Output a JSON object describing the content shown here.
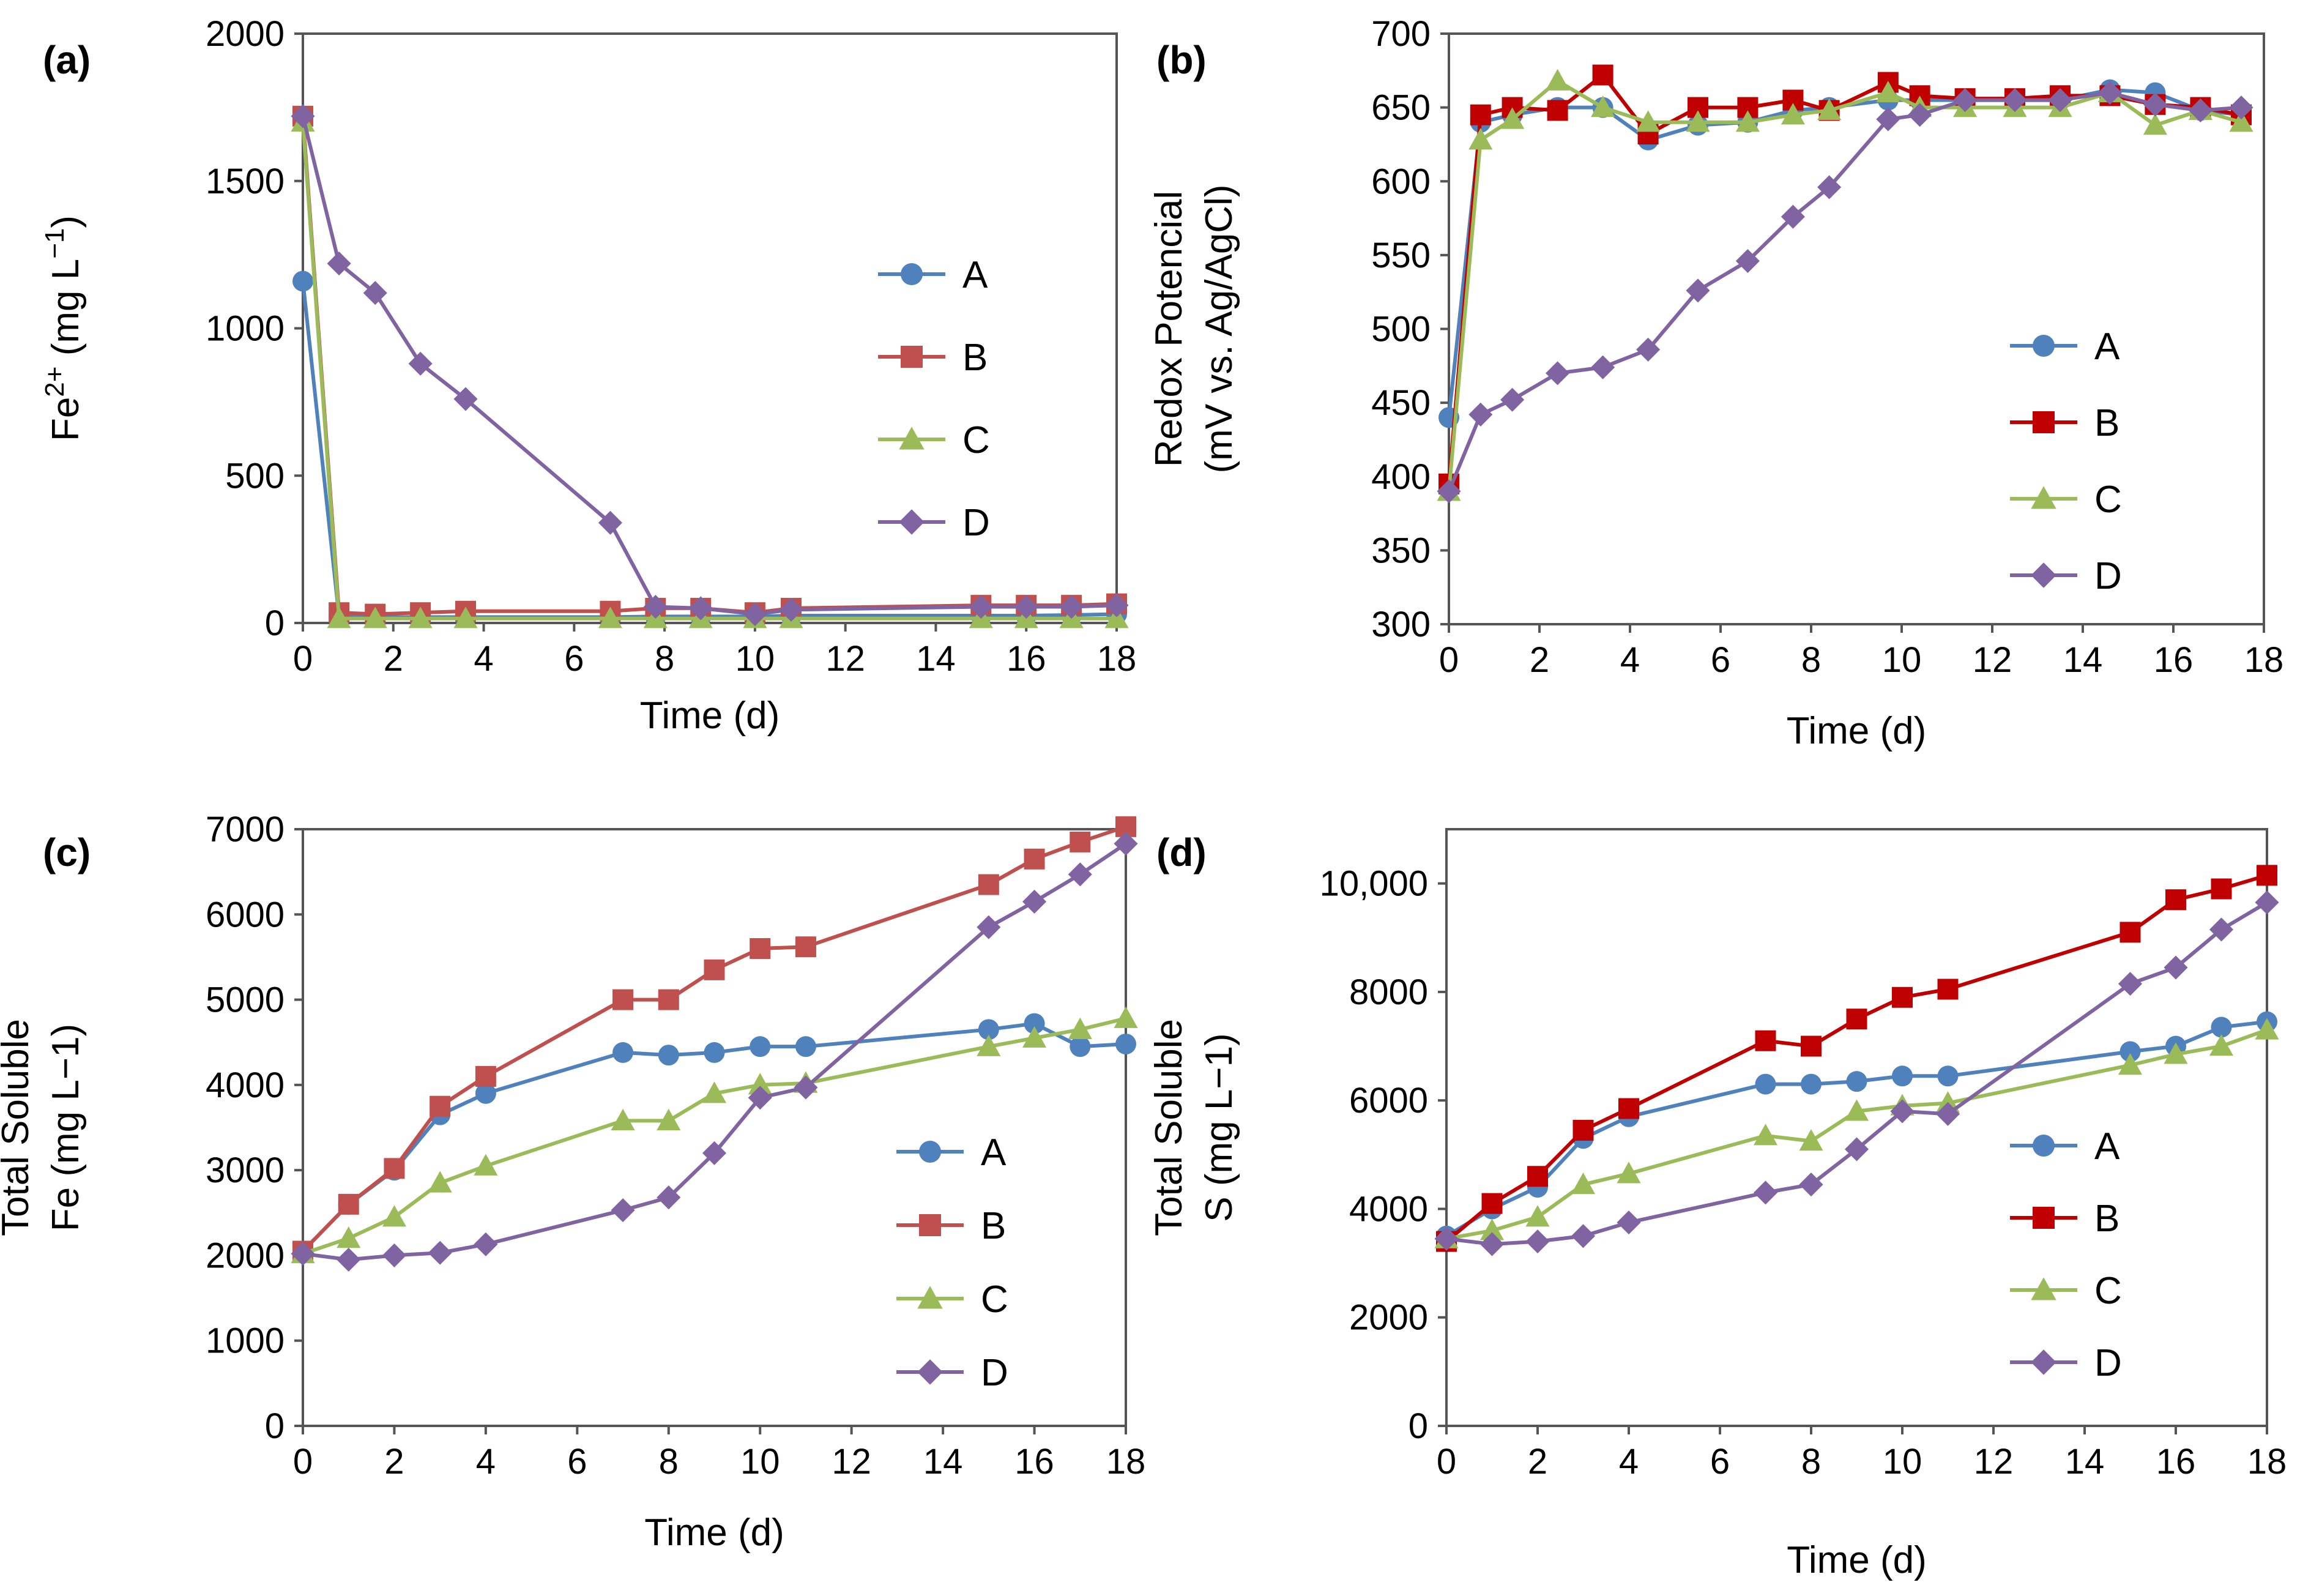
{
  "chart_data": [
    {
      "panel": "(a)",
      "type": "line",
      "title": "",
      "xlabel": "Time (d)",
      "ylabel": "Fe2+ (mg L−1)",
      "ylabel_parts": {
        "base": "Fe",
        "sup": "2+",
        "rest": " (mg  L",
        "unit_sup": "−1",
        "close": ")"
      },
      "xlim": [
        0,
        18
      ],
      "ylim": [
        0,
        2000
      ],
      "xticks": [
        "0",
        "2",
        "4",
        "6",
        "8",
        "10",
        "12",
        "14",
        "16",
        "18"
      ],
      "yticks": [
        "0",
        "500",
        "1000",
        "1500",
        "2000"
      ],
      "legend_position": "right",
      "series": [
        {
          "name": "A",
          "color": "#4f81bd",
          "marker": "circle",
          "x": [
            0,
            0.8,
            1.6,
            2.6,
            3.6,
            6.8,
            7.8,
            8.8,
            10,
            10.8,
            15,
            16,
            17,
            18
          ],
          "y": [
            1160,
            22,
            20,
            20,
            20,
            20,
            22,
            22,
            22,
            25,
            25,
            25,
            27,
            30
          ]
        },
        {
          "name": "B",
          "color": "#c0504d",
          "marker": "square",
          "x": [
            0,
            0.8,
            1.6,
            2.6,
            3.6,
            6.8,
            7.8,
            8.8,
            10,
            10.8,
            15,
            16,
            17,
            18
          ],
          "y": [
            1720,
            35,
            30,
            35,
            40,
            40,
            50,
            50,
            35,
            50,
            60,
            60,
            60,
            65
          ]
        },
        {
          "name": "C",
          "color": "#9bbb59",
          "marker": "triangle",
          "x": [
            0,
            0.8,
            1.6,
            2.6,
            3.6,
            6.8,
            7.8,
            8.8,
            10,
            10.8,
            15,
            16,
            17,
            18
          ],
          "y": [
            1700,
            15,
            15,
            15,
            15,
            15,
            15,
            15,
            15,
            15,
            15,
            15,
            15,
            15
          ]
        },
        {
          "name": "D",
          "color": "#8064a2",
          "marker": "diamond",
          "x": [
            0,
            0.8,
            1.6,
            2.6,
            3.6,
            6.8,
            7.8,
            8.8,
            10,
            10.8,
            15,
            16,
            17,
            18
          ],
          "y": [
            1720,
            1220,
            1120,
            880,
            760,
            340,
            55,
            50,
            30,
            45,
            55,
            55,
            55,
            60
          ]
        }
      ]
    },
    {
      "panel": "(b)",
      "type": "line",
      "title": "",
      "xlabel": "Time (d)",
      "ylabel": "Redox Potencial (mV vs. Ag/AgCl)",
      "ylabel_lines": [
        "Redox Potencial",
        "(mV vs. Ag/AgCl)"
      ],
      "xlim": [
        0,
        18
      ],
      "ylim": [
        300,
        700
      ],
      "xticks": [
        "0",
        "2",
        "4",
        "6",
        "8",
        "10",
        "12",
        "14",
        "16",
        "18"
      ],
      "yticks": [
        "300",
        "350",
        "400",
        "450",
        "500",
        "550",
        "600",
        "650",
        "700"
      ],
      "legend_position": "bottom-right",
      "series": [
        {
          "name": "A",
          "color": "#4f81bd",
          "marker": "circle",
          "x": [
            0,
            0.7,
            1.4,
            2.4,
            3.4,
            4.4,
            5.5,
            6.6,
            7.6,
            8.4,
            9.7,
            10.4,
            11.4,
            12.5,
            13.5,
            14.6,
            15.6,
            16.6,
            17.5
          ],
          "y": [
            440,
            640,
            645,
            650,
            650,
            628,
            638,
            640,
            648,
            650,
            655,
            655,
            655,
            655,
            655,
            662,
            660,
            648,
            645
          ]
        },
        {
          "name": "B",
          "color": "#c00000",
          "marker": "square",
          "x": [
            0,
            0.7,
            1.4,
            2.4,
            3.4,
            4.4,
            5.5,
            6.6,
            7.6,
            8.4,
            9.7,
            10.4,
            11.4,
            12.5,
            13.5,
            14.6,
            15.6,
            16.6,
            17.5
          ],
          "y": [
            395,
            645,
            650,
            648,
            672,
            632,
            650,
            650,
            655,
            648,
            667,
            658,
            656,
            656,
            658,
            658,
            652,
            650,
            645
          ]
        },
        {
          "name": "C",
          "color": "#9bbb59",
          "marker": "triangle",
          "x": [
            0,
            0.7,
            1.4,
            2.4,
            3.4,
            4.4,
            5.5,
            6.6,
            7.6,
            8.4,
            9.7,
            10.4,
            11.4,
            12.5,
            13.5,
            14.6,
            15.6,
            16.6,
            17.5
          ],
          "y": [
            390,
            628,
            642,
            668,
            650,
            640,
            640,
            640,
            645,
            648,
            660,
            650,
            650,
            650,
            650,
            660,
            638,
            648,
            640
          ]
        },
        {
          "name": "D",
          "color": "#8064a2",
          "marker": "diamond",
          "x": [
            0,
            0.7,
            1.4,
            2.4,
            3.4,
            4.4,
            5.5,
            6.6,
            7.6,
            8.4,
            9.7,
            10.4,
            11.4,
            12.5,
            13.5,
            14.6,
            15.6,
            16.6,
            17.5
          ],
          "y": [
            390,
            442,
            452,
            470,
            474,
            486,
            526,
            546,
            576,
            596,
            642,
            645,
            655,
            655,
            655,
            660,
            652,
            648,
            650
          ]
        }
      ]
    },
    {
      "panel": "(c)",
      "type": "line",
      "title": "",
      "xlabel": "Time (d)",
      "ylabel": "Total Soluble Fe (mg L−1)",
      "ylabel_lines": [
        "Total Soluble",
        "Fe (mg L−1)"
      ],
      "xlim": [
        0,
        18
      ],
      "ylim": [
        0,
        7000
      ],
      "xticks": [
        "0",
        "2",
        "4",
        "6",
        "8",
        "10",
        "12",
        "14",
        "16",
        "18"
      ],
      "yticks": [
        "0",
        "1000",
        "2000",
        "3000",
        "4000",
        "5000",
        "6000",
        "7000"
      ],
      "legend_position": "bottom-right",
      "series": [
        {
          "name": "A",
          "color": "#4f81bd",
          "marker": "circle",
          "x": [
            0,
            1,
            2,
            3,
            4,
            7,
            8,
            9,
            10,
            11,
            15,
            16,
            17,
            18
          ],
          "y": [
            2050,
            2600,
            3000,
            3650,
            3900,
            4380,
            4350,
            4380,
            4450,
            4450,
            4650,
            4720,
            4450,
            4480
          ]
        },
        {
          "name": "B",
          "color": "#c0504d",
          "marker": "square",
          "x": [
            0,
            1,
            2,
            3,
            4,
            7,
            8,
            9,
            10,
            11,
            15,
            16,
            17,
            18
          ],
          "y": [
            2050,
            2600,
            3020,
            3750,
            4100,
            5000,
            5000,
            5350,
            5600,
            5620,
            6350,
            6650,
            6850,
            7030
          ]
        },
        {
          "name": "C",
          "color": "#9bbb59",
          "marker": "triangle",
          "x": [
            0,
            1,
            2,
            3,
            4,
            7,
            8,
            9,
            10,
            11,
            15,
            16,
            17,
            18
          ],
          "y": [
            2020,
            2200,
            2450,
            2850,
            3050,
            3580,
            3580,
            3900,
            4000,
            4020,
            4450,
            4550,
            4650,
            4780
          ]
        },
        {
          "name": "D",
          "color": "#8064a2",
          "marker": "diamond",
          "x": [
            0,
            1,
            2,
            3,
            4,
            7,
            8,
            9,
            10,
            11,
            15,
            16,
            17,
            18
          ],
          "y": [
            2020,
            1950,
            2000,
            2030,
            2130,
            2530,
            2680,
            3200,
            3850,
            3970,
            5850,
            6150,
            6470,
            6830
          ]
        }
      ]
    },
    {
      "panel": "(d)",
      "type": "line",
      "title": "",
      "xlabel": "Time (d)",
      "ylabel": "Total Soluble S (mg L−1)",
      "ylabel_lines": [
        "Total Soluble",
        "S (mg L−1)"
      ],
      "xlim": [
        0,
        18
      ],
      "ylim": [
        0,
        11000
      ],
      "xticks": [
        "0",
        "2",
        "4",
        "6",
        "8",
        "10",
        "12",
        "14",
        "16",
        "18"
      ],
      "yticks": [
        "0",
        "2000",
        "4000",
        "6000",
        "8000",
        "10,000"
      ],
      "legend_position": "bottom-right",
      "series": [
        {
          "name": "A",
          "color": "#4f81bd",
          "marker": "circle",
          "x": [
            0,
            1,
            2,
            3,
            4,
            7,
            8,
            9,
            10,
            11,
            15,
            16,
            17,
            18
          ],
          "y": [
            3500,
            4000,
            4400,
            5300,
            5700,
            6300,
            6300,
            6350,
            6450,
            6450,
            6900,
            7000,
            7350,
            7450
          ]
        },
        {
          "name": "B",
          "color": "#c00000",
          "marker": "square",
          "x": [
            0,
            1,
            2,
            3,
            4,
            7,
            8,
            9,
            10,
            11,
            15,
            16,
            17,
            18
          ],
          "y": [
            3400,
            4100,
            4600,
            5450,
            5850,
            7100,
            7000,
            7500,
            7900,
            8050,
            9100,
            9700,
            9900,
            10150
          ]
        },
        {
          "name": "C",
          "color": "#9bbb59",
          "marker": "triangle",
          "x": [
            0,
            1,
            2,
            3,
            4,
            7,
            8,
            9,
            10,
            11,
            15,
            16,
            17,
            18
          ],
          "y": [
            3450,
            3600,
            3850,
            4450,
            4650,
            5350,
            5250,
            5800,
            5900,
            5950,
            6650,
            6850,
            7000,
            7300
          ]
        },
        {
          "name": "D",
          "color": "#8064a2",
          "marker": "diamond",
          "x": [
            0,
            1,
            2,
            3,
            4,
            7,
            8,
            9,
            10,
            11,
            15,
            16,
            17,
            18
          ],
          "y": [
            3450,
            3350,
            3400,
            3500,
            3750,
            4300,
            4450,
            5100,
            5800,
            5750,
            8150,
            8450,
            9150,
            9650
          ]
        }
      ]
    }
  ]
}
